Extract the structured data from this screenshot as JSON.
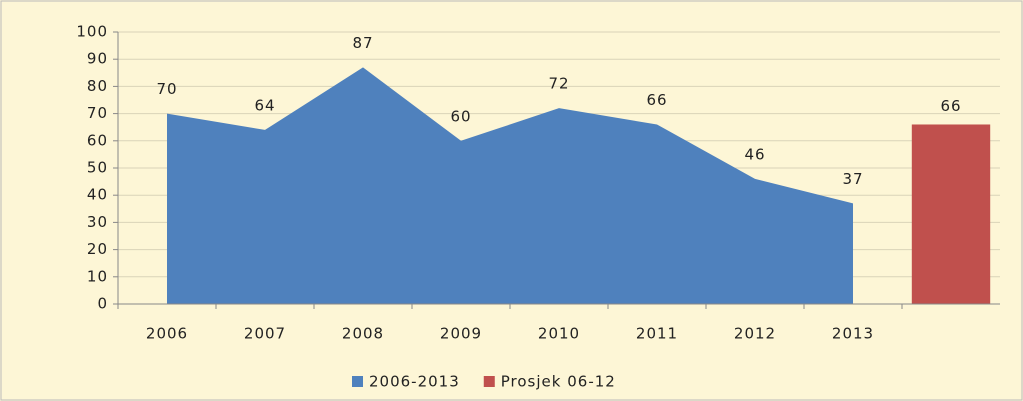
{
  "chart_data": {
    "type": "area",
    "categories": [
      "2006",
      "2007",
      "2008",
      "2009",
      "2010",
      "2011",
      "2012",
      "2013",
      null
    ],
    "series": [
      {
        "name": "2006-2013",
        "color": "#4f81bd",
        "type": "area",
        "values": [
          70,
          64,
          87,
          60,
          72,
          66,
          46,
          37,
          null
        ]
      },
      {
        "name": "Prosjek 06-12",
        "color": "#c0504d",
        "type": "bar",
        "values": [
          null,
          null,
          null,
          null,
          null,
          null,
          null,
          null,
          66
        ]
      }
    ],
    "ylim": [
      0,
      100
    ],
    "yticks": [
      0,
      10,
      20,
      30,
      40,
      50,
      60,
      70,
      80,
      90,
      100
    ],
    "grid": true,
    "legend": "bottom"
  }
}
